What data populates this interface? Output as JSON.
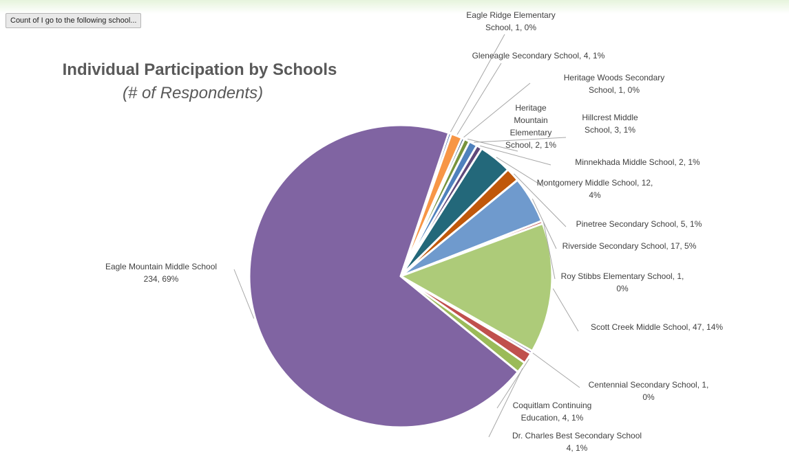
{
  "field_button": {
    "label": "Count of I go to the following school..."
  },
  "chart_data": {
    "type": "pie",
    "title": "Individual Participation by Schools",
    "subtitle": "(# of Respondents)",
    "slices": [
      {
        "name": "Eagle Ridge Elementary School",
        "value": 1,
        "percent": "0%",
        "color": "#4F6FA8"
      },
      {
        "name": "Gleneagle Secondary School",
        "value": 4,
        "percent": "1%",
        "color": "#F79646"
      },
      {
        "name": "Heritage Woods Secondary School",
        "value": 1,
        "percent": "0%",
        "color": "#2C4D75"
      },
      {
        "name": "Heritage Mountain Elementary School",
        "value": 2,
        "percent": "1%",
        "color": "#77933C"
      },
      {
        "name": "Hillcrest Middle School",
        "value": 3,
        "percent": "1%",
        "color": "#4F81BD"
      },
      {
        "name": "Minnekhada Middle School",
        "value": 2,
        "percent": "1%",
        "color": "#5F497A"
      },
      {
        "name": "Montgomery Middle School",
        "value": 12,
        "percent": "4%",
        "color": "#23687A"
      },
      {
        "name": "Pinetree Secondary School",
        "value": 5,
        "percent": "1%",
        "color": "#C0580B"
      },
      {
        "name": "Riverside Secondary School",
        "value": 17,
        "percent": "5%",
        "color": "#6F9ACD"
      },
      {
        "name": "Roy Stibbs Elementary School",
        "value": 1,
        "percent": "0%",
        "color": "#C0504D"
      },
      {
        "name": "Scott Creek Middle School",
        "value": 47,
        "percent": "14%",
        "color": "#ADCB79"
      },
      {
        "name": "Centennial Secondary School",
        "value": 1,
        "percent": "0%",
        "color": "#8064A2"
      },
      {
        "name": "Coquitlam Continuing Education",
        "value": 4,
        "percent": "1%",
        "color": "#C0504D"
      },
      {
        "name": "Dr. Charles Best Secondary School",
        "value": 4,
        "percent": "1%",
        "color": "#9BBB59"
      },
      {
        "name": "Eagle Mountain Middle School",
        "value": 234,
        "percent": "69%",
        "color": "#8064A2"
      }
    ],
    "labels": [
      {
        "lines": [
          "Eagle Ridge Elementary",
          "School, 1, 0%"
        ]
      },
      {
        "lines": [
          "Gleneagle Secondary School, 4, 1%"
        ]
      },
      {
        "lines": [
          "Heritage Woods Secondary",
          "School, 1, 0%"
        ]
      },
      {
        "lines": [
          "Heritage",
          "Mountain",
          "Elementary",
          "School, 2, 1%"
        ]
      },
      {
        "lines": [
          "Hillcrest Middle",
          "School, 3, 1%"
        ]
      },
      {
        "lines": [
          "Minnekhada Middle School, 2, 1%"
        ]
      },
      {
        "lines": [
          "Montgomery Middle School, 12,",
          "4%"
        ]
      },
      {
        "lines": [
          "Pinetree Secondary School, 5, 1%"
        ]
      },
      {
        "lines": [
          "Riverside Secondary School, 17, 5%"
        ]
      },
      {
        "lines": [
          "Roy Stibbs Elementary School, 1,",
          "0%"
        ]
      },
      {
        "lines": [
          "Scott Creek Middle School, 47, 14%"
        ]
      },
      {
        "lines": [
          "Centennial Secondary School, 1,",
          "0%"
        ]
      },
      {
        "lines": [
          "Coquitlam Continuing",
          "Education, 4, 1%"
        ]
      },
      {
        "lines": [
          "Dr. Charles Best Secondary School",
          "4, 1%"
        ]
      },
      {
        "lines": [
          "Eagle Mountain Middle School",
          "234, 69%"
        ]
      }
    ]
  }
}
